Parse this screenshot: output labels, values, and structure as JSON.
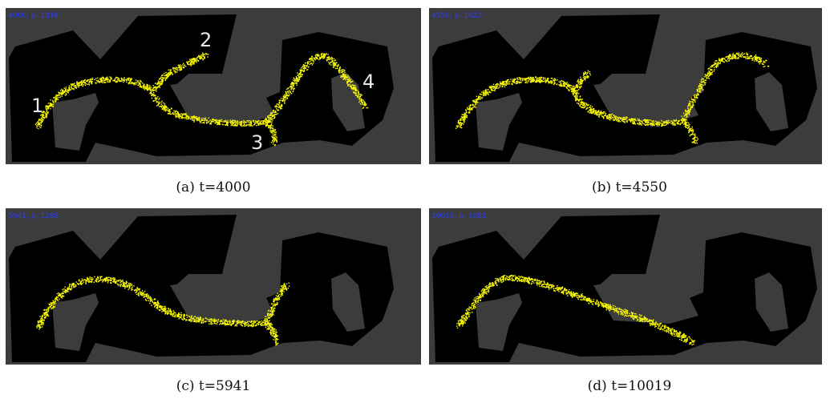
{
  "colors": {
    "background": "#3c3c3c",
    "free_space": "#000000",
    "particles": "#ffff00",
    "hud_text": "#2a3cff",
    "marker_text": "#e8e8e8"
  },
  "panels": [
    {
      "caption": "(a)  t=4000",
      "hud": "4000,  p: 1819",
      "markers": [
        "1",
        "2",
        "3",
        "4"
      ]
    },
    {
      "caption": "(b)  t=4550",
      "hud": "4550,  p: 1622",
      "markers": []
    },
    {
      "caption": "(c)  t=5941",
      "hud": "5941,  p: 1288",
      "markers": []
    },
    {
      "caption": "(d)  t=10019",
      "hud": "10019,  p: 1081",
      "markers": []
    }
  ]
}
